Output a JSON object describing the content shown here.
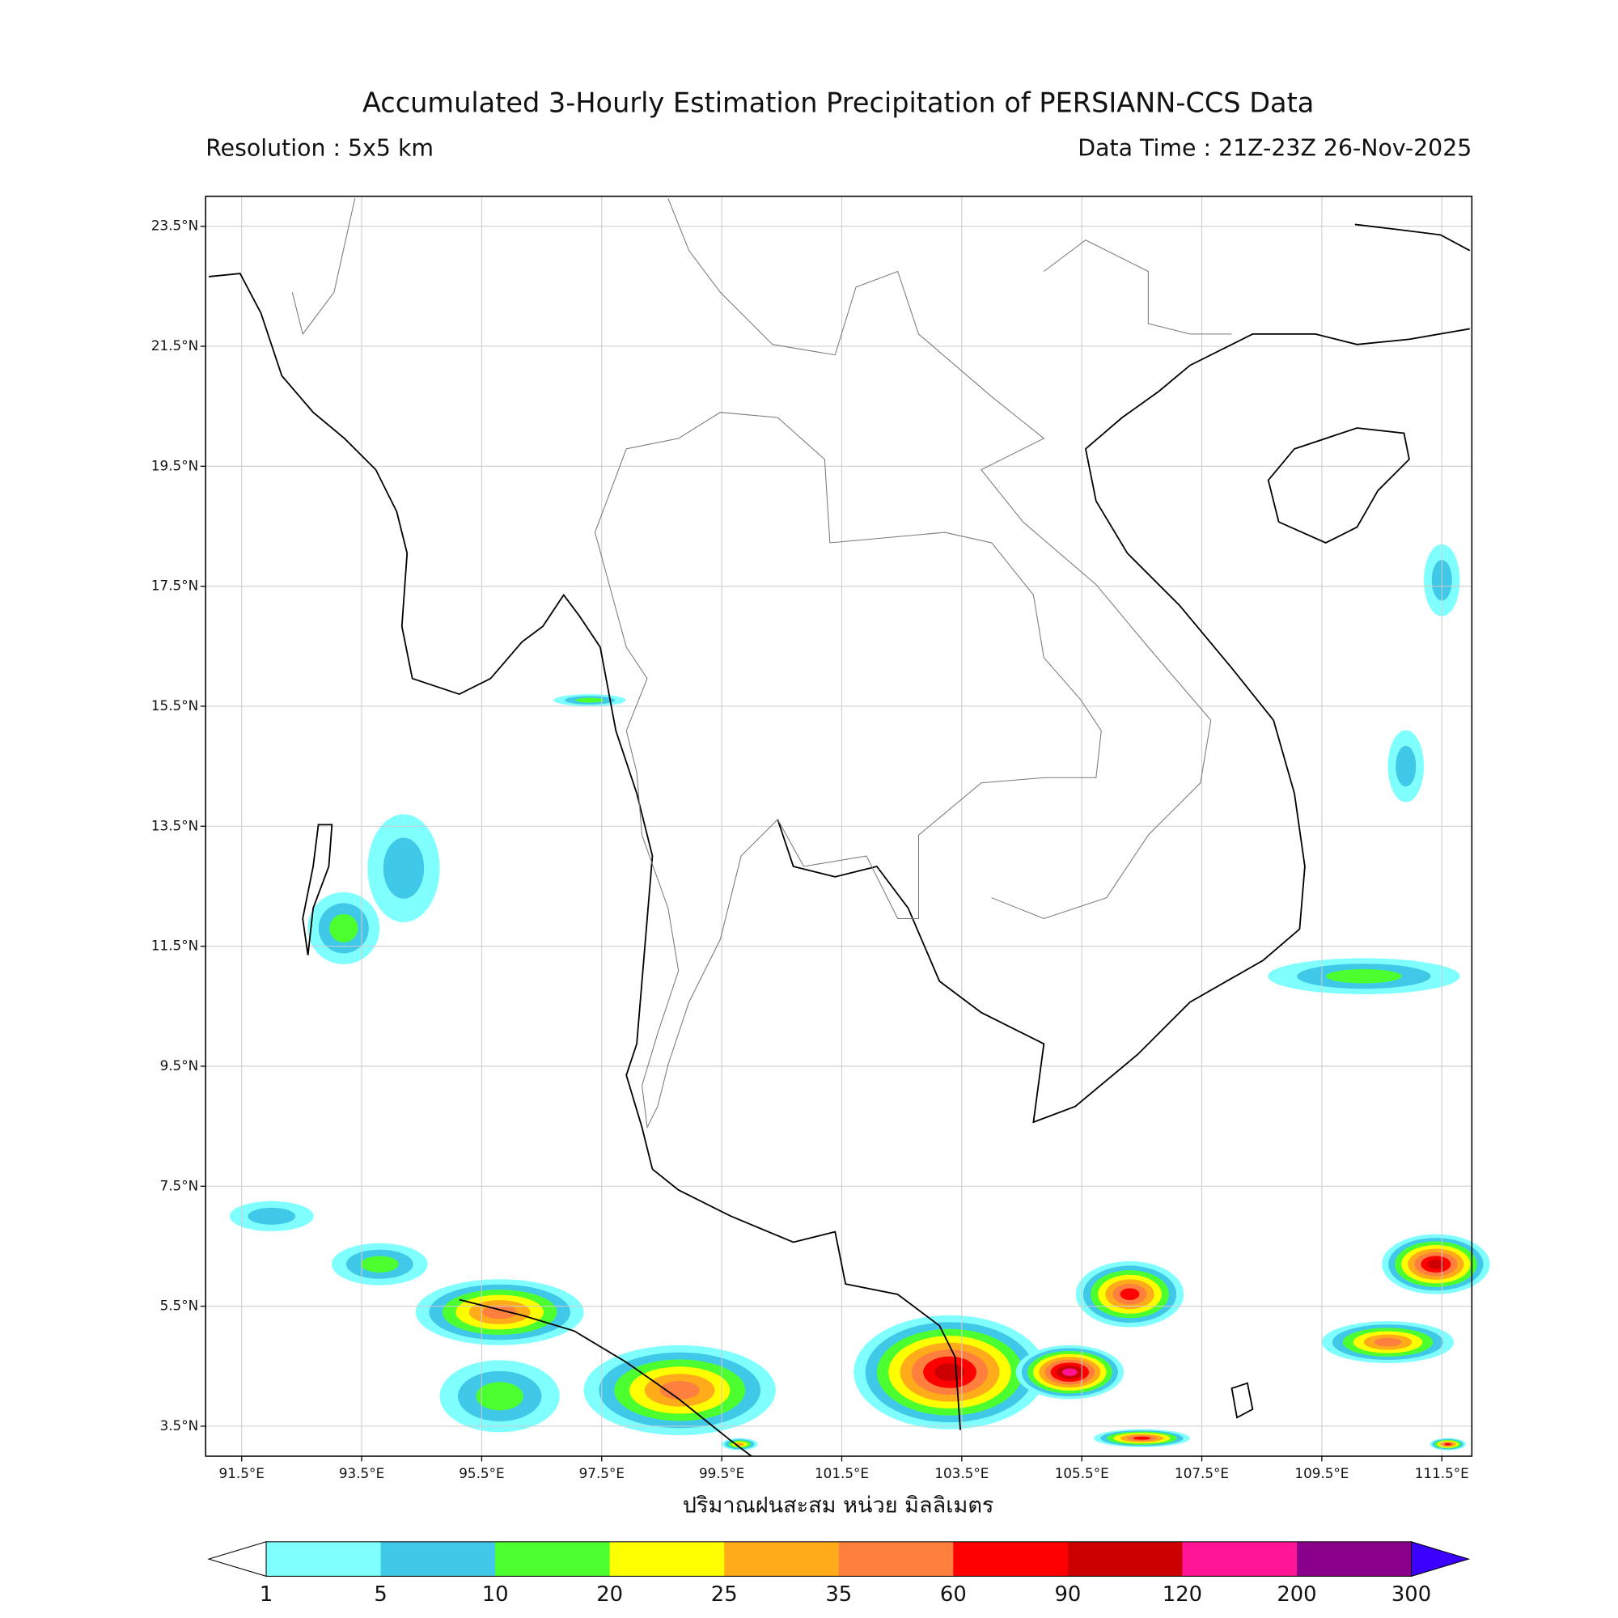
{
  "chart_data": {
    "type": "map",
    "title": "Accumulated 3-Hourly Estimation Precipitation of PERSIANN-CCS Data",
    "subtitle_left": "Resolution : 5x5 km",
    "subtitle_right": "Data Time : 21Z-23Z 26-Nov-2025",
    "xlabel": "ปริมาณฝนสะสม หน่วย มิลลิเมตร",
    "xlim": [
      90.9,
      112.0
    ],
    "ylim": [
      3.0,
      24.0
    ],
    "grid": true,
    "xticks": [
      {
        "value": 91.5,
        "label": "91.5°E"
      },
      {
        "value": 93.5,
        "label": "93.5°E"
      },
      {
        "value": 95.5,
        "label": "95.5°E"
      },
      {
        "value": 97.5,
        "label": "97.5°E"
      },
      {
        "value": 99.5,
        "label": "99.5°E"
      },
      {
        "value": 101.5,
        "label": "101.5°E"
      },
      {
        "value": 103.5,
        "label": "103.5°E"
      },
      {
        "value": 105.5,
        "label": "105.5°E"
      },
      {
        "value": 107.5,
        "label": "107.5°E"
      },
      {
        "value": 109.5,
        "label": "109.5°E"
      },
      {
        "value": 111.5,
        "label": "111.5°E"
      }
    ],
    "yticks": [
      {
        "value": 3.5,
        "label": "3.5°N"
      },
      {
        "value": 5.5,
        "label": "5.5°N"
      },
      {
        "value": 7.5,
        "label": "7.5°N"
      },
      {
        "value": 9.5,
        "label": "9.5°N"
      },
      {
        "value": 11.5,
        "label": "11.5°N"
      },
      {
        "value": 13.5,
        "label": "13.5°N"
      },
      {
        "value": 15.5,
        "label": "15.5°N"
      },
      {
        "value": 17.5,
        "label": "17.5°N"
      },
      {
        "value": 19.5,
        "label": "19.5°N"
      },
      {
        "value": 21.5,
        "label": "21.5°N"
      },
      {
        "value": 23.5,
        "label": "23.5°N"
      }
    ],
    "colorbar": {
      "levels": [
        1,
        5,
        10,
        20,
        25,
        35,
        60,
        90,
        120,
        200,
        300
      ],
      "colors": [
        "#80ffff",
        "#40c8e8",
        "#4cff2e",
        "#ffff00",
        "#ffab1a",
        "#ff7f3f",
        "#ff0000",
        "#cc0000",
        "#ff1493",
        "#8b008b"
      ],
      "under_color": "#ffffff",
      "over_color": "#3b00ff"
    }
  }
}
